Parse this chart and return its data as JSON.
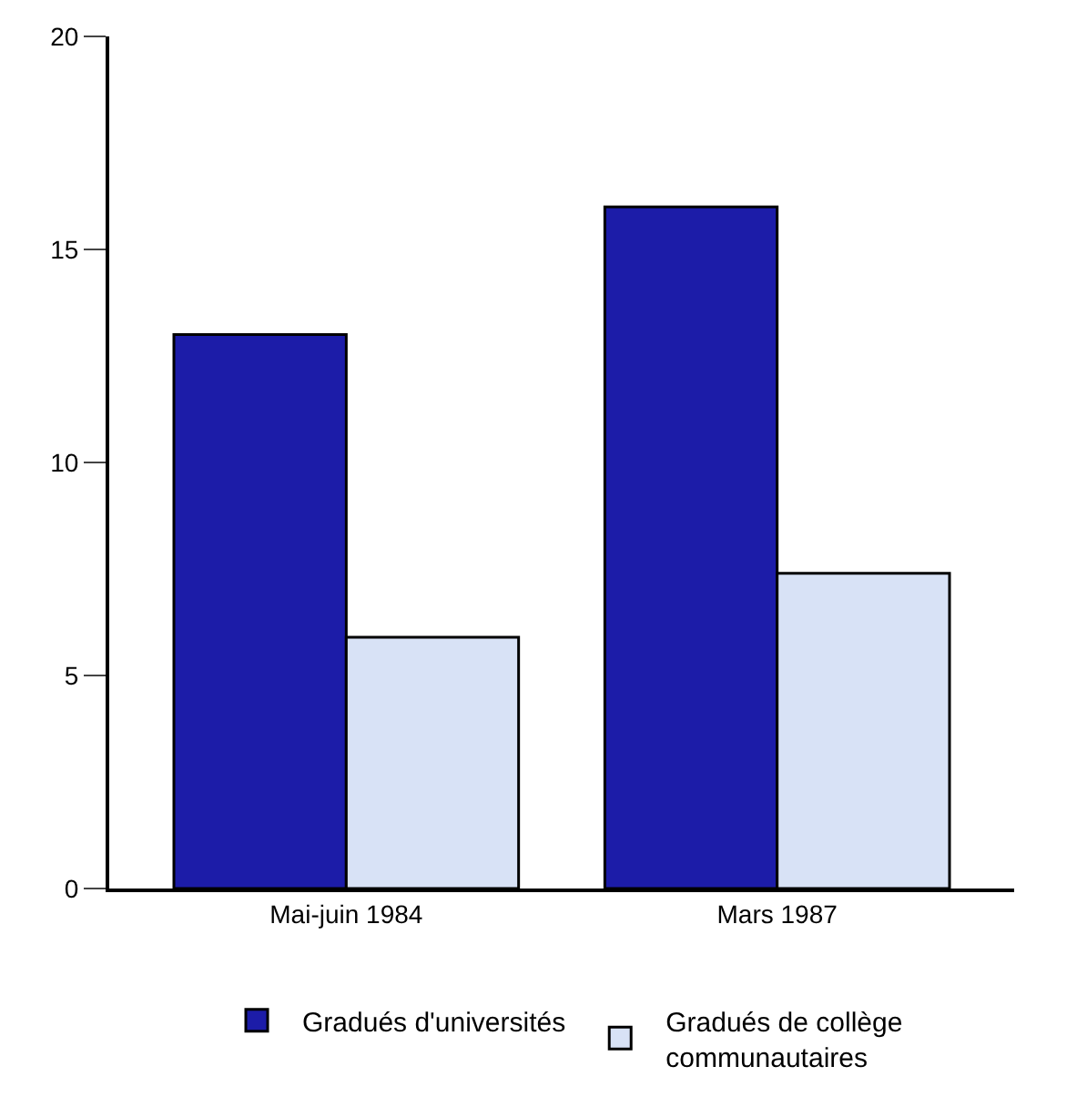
{
  "chart_data": {
    "type": "bar",
    "categories": [
      "Mai-juin 1984",
      "Mars 1987"
    ],
    "series": [
      {
        "name": "Gradués d'universités",
        "color": "#1c1ca8",
        "values": [
          13,
          16
        ]
      },
      {
        "name": "Gradués de collège communautaires",
        "color": "#d8e2f6",
        "values": [
          5.9,
          7.4
        ]
      }
    ],
    "ylim": [
      0,
      20
    ],
    "yticks": [
      0,
      5,
      10,
      15,
      20
    ],
    "legend": "bottom"
  }
}
